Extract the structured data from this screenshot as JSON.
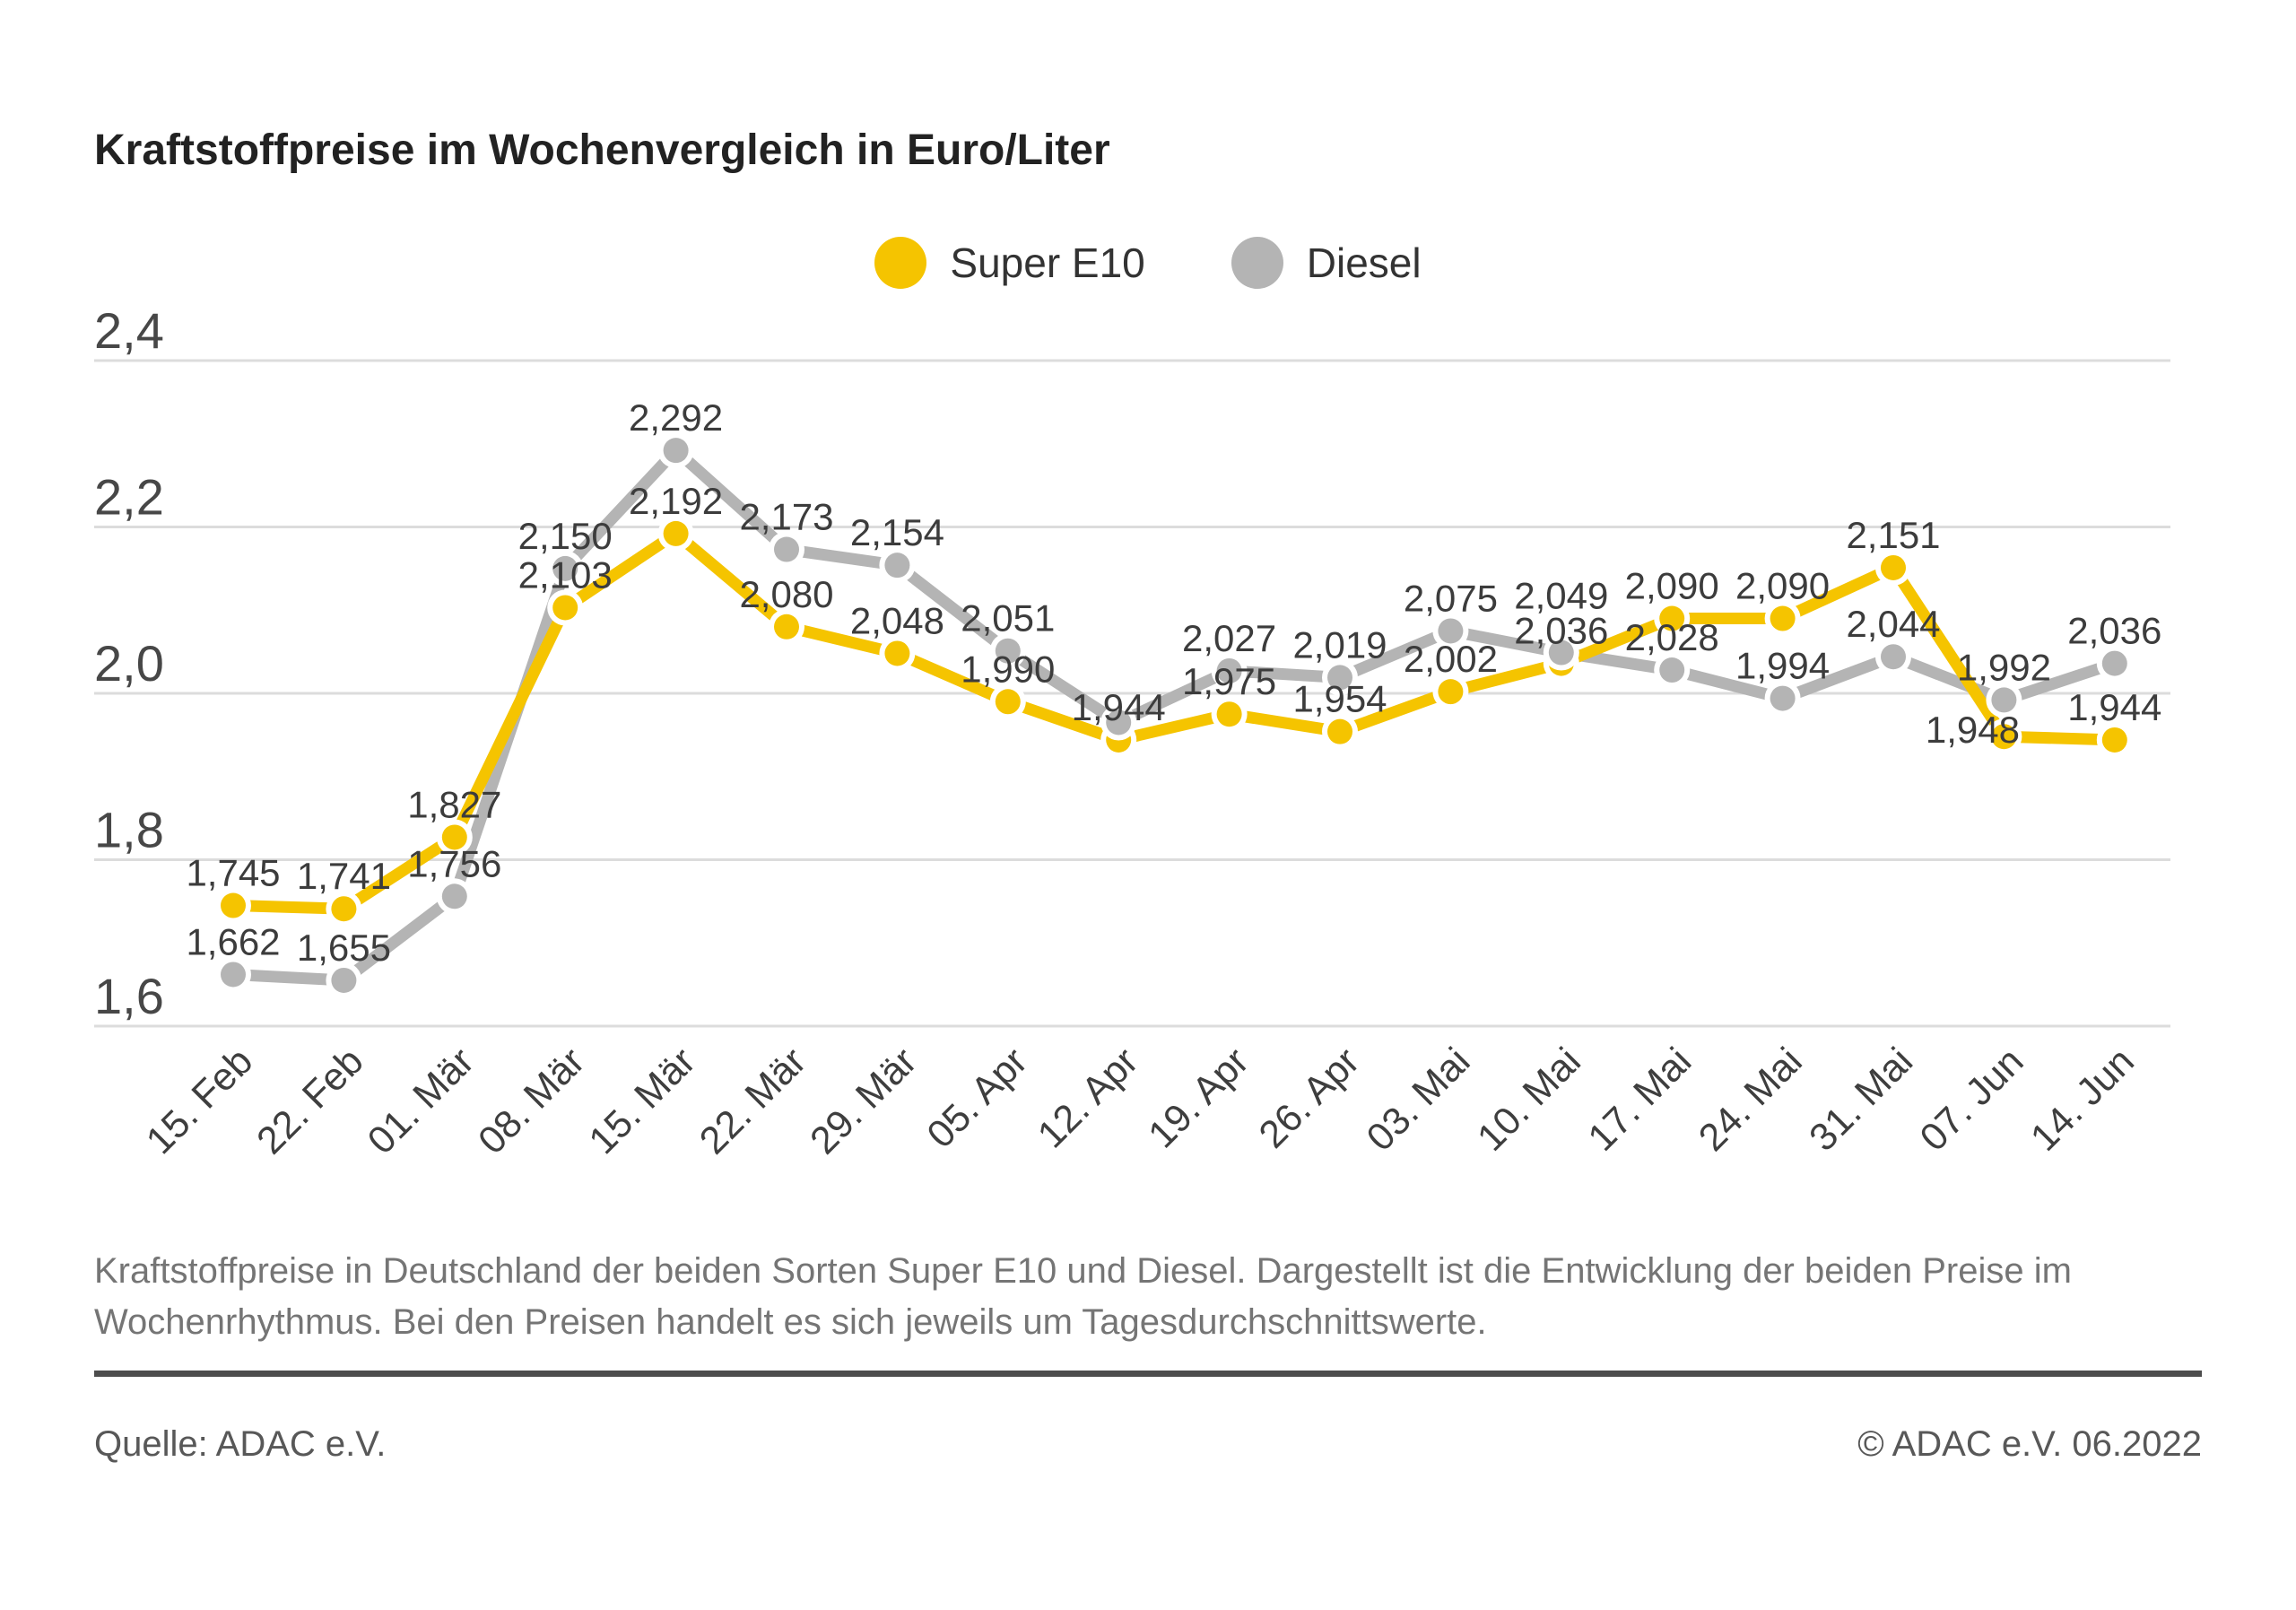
{
  "title": "Kraftstoffpreise im Wochenvergleich in Euro/Liter",
  "legend": {
    "items": [
      {
        "label": "Super E10",
        "color": "#F5C400"
      },
      {
        "label": "Diesel",
        "color": "#B4B4B4"
      }
    ]
  },
  "chart_data": {
    "type": "line",
    "title": "Kraftstoffpreise im Wochenvergleich in Euro/Liter",
    "xlabel": "",
    "ylabel": "Euro/Liter",
    "ylim": [
      1.6,
      2.4
    ],
    "grid": true,
    "legend_position": "top-center",
    "x": [
      "15. Feb",
      "22. Feb",
      "01. Mär",
      "08. Mär",
      "15. Mär",
      "22. Mär",
      "29. Mär",
      "05. Apr",
      "12. Apr",
      "19. Apr",
      "26. Apr",
      "03. Mai",
      "10. Mai",
      "17. Mai",
      "24. Mai",
      "31. Mai",
      "07. Jun",
      "14. Jun"
    ],
    "yticks": [
      {
        "label": "2,4",
        "value": 2.4
      },
      {
        "label": "2,2",
        "value": 2.2
      },
      {
        "label": "2,0",
        "value": 2.0
      },
      {
        "label": "1,8",
        "value": 1.8
      },
      {
        "label": "1,6",
        "value": 1.6
      }
    ],
    "series": [
      {
        "name": "Super E10",
        "color": "#F5C400",
        "values": [
          1.745,
          1.741,
          1.827,
          2.103,
          2.192,
          2.08,
          2.048,
          1.99,
          1.944,
          1.975,
          1.954,
          2.002,
          2.036,
          2.09,
          2.09,
          2.151,
          1.948,
          1.944
        ],
        "labels": [
          "1,745",
          "1,741",
          "1,827",
          "2,103",
          "2,192",
          "2,080",
          "2,048",
          "1,990",
          "1,944",
          "1,975",
          "1,954",
          "2,002",
          "2,036",
          "2,090",
          "2,090",
          "2,151",
          "1,948",
          "1,944"
        ]
      },
      {
        "name": "Diesel",
        "color": "#B4B4B4",
        "values": [
          1.662,
          1.655,
          1.756,
          2.15,
          2.292,
          2.173,
          2.154,
          2.051,
          1.965,
          2.027,
          2.019,
          2.075,
          2.049,
          2.028,
          1.994,
          2.044,
          1.992,
          2.036
        ],
        "labels": [
          "1,662",
          "1,655",
          "1,756",
          "2,150",
          "2,292",
          "2,173",
          "2,154",
          "2,051",
          "",
          "2,027",
          "2,019",
          "2,075",
          "2,049",
          "2,028",
          "1,994",
          "2,044",
          "1,992",
          "2,036"
        ]
      }
    ]
  },
  "footnote_lines": [
    "Kraftstoffpreise in Deutschland der beiden Sorten Super E10 und Diesel. Dargestellt ist die Entwicklung der beiden Preise im",
    "Wochenrhythmus. Bei den Preisen handelt es sich jeweils um Tagesdurchschnittswerte."
  ],
  "source": "Quelle: ADAC e.V.",
  "copyright": "© ADAC e.V. 06.2022",
  "colors": {
    "background": "#FFFFFF",
    "grid": "#DCDCDC",
    "title_text": "#222222",
    "data_label": "#3C3C3C",
    "axis_text": "#474747",
    "footnote_text": "#757575",
    "rule": "#4D4D4D",
    "super_e10": "#F5C400",
    "diesel": "#B4B4B4"
  }
}
